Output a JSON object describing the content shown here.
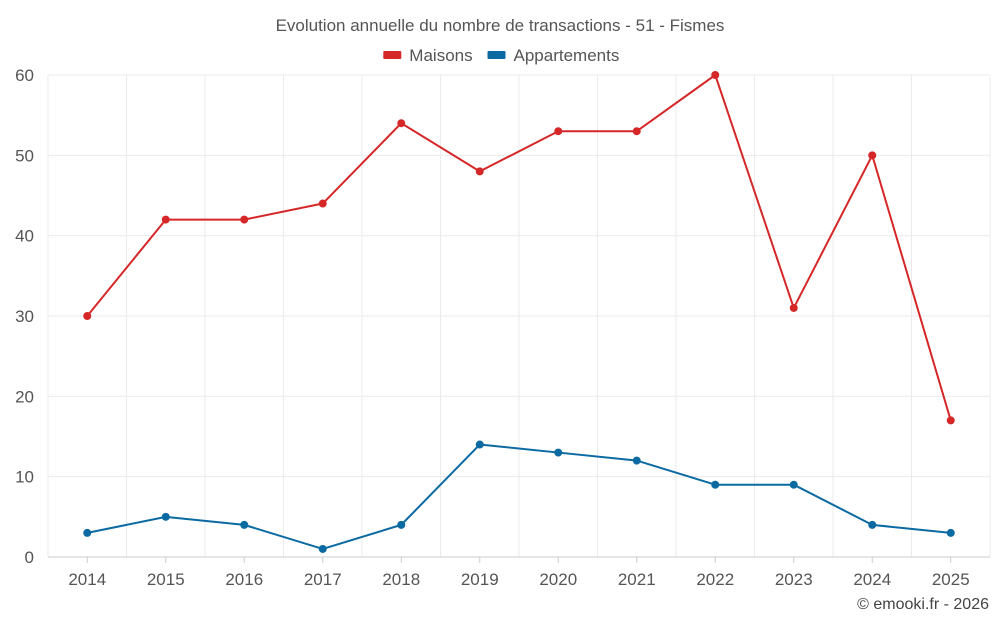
{
  "chart_data": {
    "type": "line",
    "title": "Evolution annuelle du nombre de transactions - 51 - Fismes",
    "categories": [
      "2014",
      "2015",
      "2016",
      "2017",
      "2018",
      "2019",
      "2020",
      "2021",
      "2022",
      "2023",
      "2024",
      "2025"
    ],
    "series": [
      {
        "name": "Maisons",
        "color": "#d62728",
        "values": [
          30,
          42,
          42,
          44,
          54,
          48,
          53,
          53,
          60,
          31,
          50,
          17
        ]
      },
      {
        "name": "Appartements",
        "color": "#0b6aa2",
        "values": [
          3,
          5,
          4,
          1,
          4,
          14,
          13,
          12,
          9,
          9,
          4,
          3
        ]
      }
    ],
    "yticks": [
      0,
      10,
      20,
      30,
      40,
      50,
      60
    ],
    "ylim": [
      0,
      60
    ],
    "xlabel": "",
    "ylabel": "",
    "legend_position": "top-center",
    "grid": true
  },
  "credit": "© emooki.fr - 2026"
}
